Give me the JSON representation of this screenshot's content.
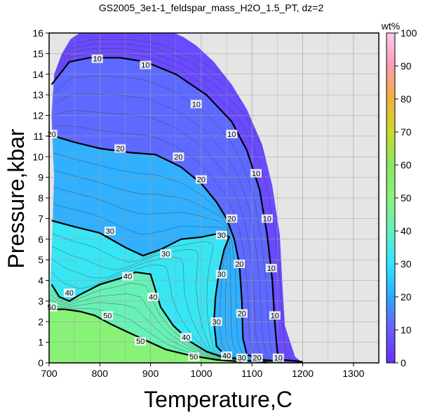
{
  "title": "GS2005_3e1-1_feldspar_mass_H2O_1.5_PT, dz=2",
  "colors": {
    "background": "#e5e5e5",
    "grid": "#a0a0a0",
    "major_contour": "#000000",
    "minor_contour": "#333333"
  },
  "chart_data": {
    "type": "heatmap",
    "title": "GS2005_3e1-1_feldspar_mass_H2O_1.5_PT, dz=2",
    "xlabel": "Temperature,C",
    "ylabel": "Pressure,kbar",
    "xlim": [
      700,
      1350
    ],
    "ylim": [
      0,
      16
    ],
    "x_ticks": [
      "700",
      "800",
      "900",
      "1000",
      "1100",
      "1200",
      "1300"
    ],
    "x_tick_values": [
      700,
      800,
      900,
      1000,
      1100,
      1200,
      1300
    ],
    "y_ticks": [
      "0",
      "1",
      "2",
      "3",
      "4",
      "5",
      "6",
      "7",
      "8",
      "9",
      "10",
      "11",
      "12",
      "13",
      "14",
      "15",
      "16"
    ],
    "y_tick_values": [
      0,
      1,
      2,
      3,
      4,
      5,
      6,
      7,
      8,
      9,
      10,
      11,
      12,
      13,
      14,
      15,
      16
    ],
    "grid": true,
    "colorbar": {
      "label": "wt%",
      "range": [
        0,
        100
      ],
      "ticks": [
        "0",
        "10",
        "20",
        "30",
        "40",
        "50",
        "60",
        "70",
        "80",
        "90",
        "100"
      ],
      "tick_values": [
        0,
        10,
        20,
        30,
        40,
        50,
        60,
        70,
        80,
        90,
        100
      ],
      "stops": [
        {
          "value": 0,
          "color": "#6a2eff"
        },
        {
          "value": 10,
          "color": "#6a5cff"
        },
        {
          "value": 20,
          "color": "#2ea8ff"
        },
        {
          "value": 30,
          "color": "#2fe6ff"
        },
        {
          "value": 40,
          "color": "#62f0c0"
        },
        {
          "value": 50,
          "color": "#8af27a"
        },
        {
          "value": 60,
          "color": "#88e860"
        },
        {
          "value": 70,
          "color": "#ccd830"
        },
        {
          "value": 80,
          "color": "#f0b040"
        },
        {
          "value": 90,
          "color": "#ff9cb0"
        },
        {
          "value": 100,
          "color": "#ffc8f0"
        }
      ]
    },
    "field_boundary": [
      [
        700,
        0
      ],
      [
        700,
        2.4
      ],
      [
        705,
        5.0
      ],
      [
        710,
        9.0
      ],
      [
        705,
        12.0
      ],
      [
        710,
        14.0
      ],
      [
        725,
        15.0
      ],
      [
        742,
        15.7
      ],
      [
        760,
        16
      ],
      [
        948,
        16
      ],
      [
        965,
        15.8
      ],
      [
        990,
        15.4
      ],
      [
        1025,
        14.6
      ],
      [
        1060,
        13.5
      ],
      [
        1090,
        12.3
      ],
      [
        1120,
        10.6
      ],
      [
        1140,
        8.6
      ],
      [
        1155,
        6.2
      ],
      [
        1160,
        3.8
      ],
      [
        1165,
        1.8
      ],
      [
        1185,
        0.3
      ],
      [
        1200,
        0
      ]
    ],
    "contours": [
      {
        "level": 10,
        "points": [
          [
            705,
            13.5
          ],
          [
            740,
            14.6
          ],
          [
            780,
            14.8
          ],
          [
            840,
            14.8
          ],
          [
            890,
            14.6
          ],
          [
            950,
            14.0
          ],
          [
            1010,
            13.0
          ],
          [
            1060,
            11.7
          ],
          [
            1090,
            10.3
          ],
          [
            1115,
            8.4
          ],
          [
            1130,
            6.2
          ],
          [
            1140,
            4.0
          ],
          [
            1145,
            1.9
          ],
          [
            1150,
            0.5
          ],
          [
            1160,
            0.15
          ],
          [
            1200,
            0.05
          ]
        ]
      },
      {
        "level": 20,
        "points": [
          [
            710,
            11.0
          ],
          [
            750,
            10.7
          ],
          [
            800,
            10.4
          ],
          [
            860,
            10.2
          ],
          [
            910,
            10.1
          ],
          [
            960,
            9.5
          ],
          [
            1000,
            8.7
          ],
          [
            1030,
            7.8
          ],
          [
            1050,
            7.0
          ],
          [
            1065,
            6.0
          ],
          [
            1075,
            4.8
          ],
          [
            1080,
            3.0
          ],
          [
            1082,
            1.2
          ],
          [
            1090,
            0.4
          ],
          [
            1120,
            0.15
          ],
          [
            1160,
            0.05
          ]
        ]
      },
      {
        "level": 30,
        "points": [
          [
            705,
            6.9
          ],
          [
            750,
            6.6
          ],
          [
            800,
            6.3
          ],
          [
            850,
            5.6
          ],
          [
            885,
            5.2
          ],
          [
            920,
            5.5
          ],
          [
            960,
            6.0
          ],
          [
            1000,
            6.1
          ],
          [
            1040,
            6.3
          ],
          [
            1055,
            6.1
          ],
          [
            1045,
            5.5
          ],
          [
            1035,
            4.4
          ],
          [
            1028,
            3.2
          ],
          [
            1025,
            2.0
          ],
          [
            1030,
            0.8
          ],
          [
            1050,
            0.3
          ],
          [
            1090,
            0.1
          ],
          [
            1130,
            0.03
          ]
        ]
      },
      {
        "level": 40,
        "points": [
          [
            705,
            3.8
          ],
          [
            720,
            3.2
          ],
          [
            740,
            3.0
          ],
          [
            760,
            3.3
          ],
          [
            800,
            3.8
          ],
          [
            840,
            4.1
          ],
          [
            870,
            4.4
          ],
          [
            900,
            4.3
          ],
          [
            910,
            3.5
          ],
          [
            920,
            2.7
          ],
          [
            945,
            1.8
          ],
          [
            980,
            1.0
          ],
          [
            1010,
            0.55
          ],
          [
            1040,
            0.3
          ],
          [
            1080,
            0.15
          ]
        ]
      },
      {
        "level": 50,
        "points": [
          [
            700,
            2.6
          ],
          [
            730,
            2.6
          ],
          [
            760,
            2.5
          ],
          [
            790,
            2.3
          ],
          [
            820,
            1.9
          ],
          [
            850,
            1.55
          ],
          [
            890,
            1.1
          ],
          [
            930,
            0.65
          ],
          [
            980,
            0.35
          ],
          [
            1030,
            0.15
          ],
          [
            1080,
            0.05
          ]
        ]
      }
    ],
    "contour_labels": [
      {
        "text": "10",
        "x": 795,
        "y": 14.75
      },
      {
        "text": "10",
        "x": 890,
        "y": 14.45
      },
      {
        "text": "10",
        "x": 990,
        "y": 12.55
      },
      {
        "text": "10",
        "x": 1060,
        "y": 11.1
      },
      {
        "text": "10",
        "x": 1108,
        "y": 9.2
      },
      {
        "text": "10",
        "x": 1130,
        "y": 7.0
      },
      {
        "text": "10",
        "x": 1138,
        "y": 4.6
      },
      {
        "text": "10",
        "x": 1145,
        "y": 2.3
      },
      {
        "text": "10",
        "x": 1152,
        "y": 0.25
      },
      {
        "text": "20",
        "x": 705,
        "y": 11.1
      },
      {
        "text": "20",
        "x": 840,
        "y": 10.4
      },
      {
        "text": "20",
        "x": 955,
        "y": 10.0
      },
      {
        "text": "20",
        "x": 1000,
        "y": 8.9
      },
      {
        "text": "20",
        "x": 1060,
        "y": 7.0
      },
      {
        "text": "20",
        "x": 1075,
        "y": 4.8
      },
      {
        "text": "20",
        "x": 1080,
        "y": 2.4
      },
      {
        "text": "20",
        "x": 1110,
        "y": 0.25
      },
      {
        "text": "30",
        "x": 820,
        "y": 6.4
      },
      {
        "text": "30",
        "x": 930,
        "y": 5.3
      },
      {
        "text": "30",
        "x": 1040,
        "y": 6.2
      },
      {
        "text": "30",
        "x": 1040,
        "y": 4.3
      },
      {
        "text": "30",
        "x": 1030,
        "y": 2.0
      },
      {
        "text": "30",
        "x": 1080,
        "y": 0.25
      },
      {
        "text": "40",
        "x": 740,
        "y": 3.4
      },
      {
        "text": "40",
        "x": 855,
        "y": 4.2
      },
      {
        "text": "40",
        "x": 905,
        "y": 3.2
      },
      {
        "text": "40",
        "x": 970,
        "y": 1.25
      },
      {
        "text": "40",
        "x": 1050,
        "y": 0.35
      },
      {
        "text": "50",
        "x": 705,
        "y": 2.7
      },
      {
        "text": "50",
        "x": 815,
        "y": 2.3
      },
      {
        "text": "50",
        "x": 880,
        "y": 1.05
      },
      {
        "text": "50",
        "x": 985,
        "y": 0.3
      }
    ]
  }
}
